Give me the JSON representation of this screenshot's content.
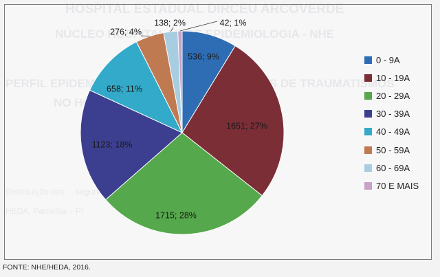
{
  "chart_data": {
    "type": "pie",
    "categories": [
      "0 - 9A",
      "10 - 19A",
      "20 - 29A",
      "30 - 39A",
      "40 - 49A",
      "50 - 59A",
      "60 - 69A",
      "70 E MAIS"
    ],
    "values": [
      536,
      1651,
      1715,
      1123,
      658,
      276,
      138,
      42
    ],
    "percents": [
      9,
      27,
      28,
      18,
      11,
      4,
      2,
      1
    ],
    "data_labels": [
      "536; 9%",
      "1651; 27%",
      "1715; 28%",
      "1123; 18%",
      "658; 11%",
      "276; 4%",
      "138; 2%",
      "42; 1%"
    ],
    "colors": [
      "#2e6db4",
      "#7b2e36",
      "#55a84b",
      "#3c3f8f",
      "#33aac9",
      "#c07a52",
      "#a8cde0",
      "#c8a2c8"
    ],
    "title": "",
    "legend_position": "right"
  },
  "source_text": "FONTE: NHE/HEDA, 2016.",
  "background_text": [
    "HOSPITAL ESTADUAL DIRCEU ARCOVERDE",
    "NÚCLEO HOSPITALAR DE EPIDEMIOLOGIA - NHE",
    "PERFIL EPIDEMIOLÓGICO DOS ATENDIMENTOS DE TRAUMATISMOS",
    "NO HOSPITAL ... DE 2016",
    "Distribuição dos ... segundo faixa etária",
    "HEDA, Parnaíba – PI"
  ]
}
